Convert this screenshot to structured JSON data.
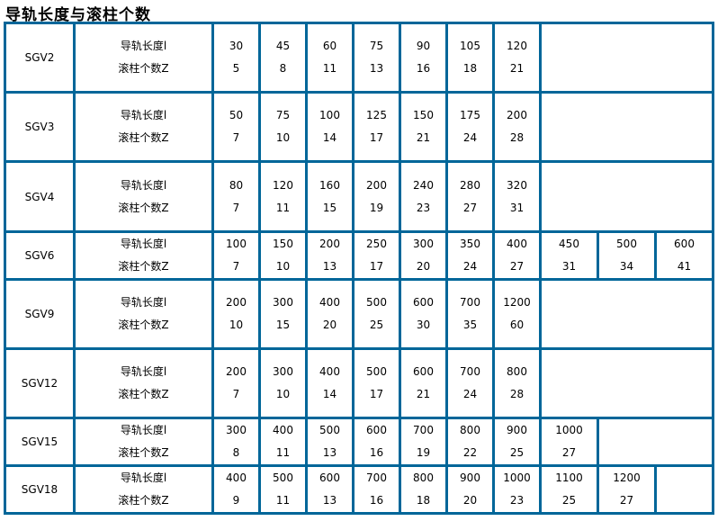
{
  "title": "导轨长度与滚柱个数",
  "row_labels": {
    "length": "导轨长度l",
    "count": "滚柱个数Z"
  },
  "colors": {
    "border": "#006699"
  },
  "rows": [
    {
      "model": "SGV2",
      "lengths": [
        "30",
        "45",
        "60",
        "75",
        "90",
        "105",
        "120"
      ],
      "counts": [
        "5",
        "8",
        "11",
        "13",
        "16",
        "18",
        "21"
      ]
    },
    {
      "model": "SGV3",
      "lengths": [
        "50",
        "75",
        "100",
        "125",
        "150",
        "175",
        "200"
      ],
      "counts": [
        "7",
        "10",
        "14",
        "17",
        "21",
        "24",
        "28"
      ]
    },
    {
      "model": "SGV4",
      "lengths": [
        "80",
        "120",
        "160",
        "200",
        "240",
        "280",
        "320"
      ],
      "counts": [
        "7",
        "11",
        "15",
        "19",
        "23",
        "27",
        "31"
      ]
    },
    {
      "model": "SGV6",
      "lengths": [
        "100",
        "150",
        "200",
        "250",
        "300",
        "350",
        "400",
        "450",
        "500",
        "600"
      ],
      "counts": [
        "7",
        "10",
        "13",
        "17",
        "20",
        "24",
        "27",
        "31",
        "34",
        "41"
      ]
    },
    {
      "model": "SGV9",
      "lengths": [
        "200",
        "300",
        "400",
        "500",
        "600",
        "700",
        "1200"
      ],
      "counts": [
        "10",
        "15",
        "20",
        "25",
        "30",
        "35",
        "60"
      ]
    },
    {
      "model": "SGV12",
      "lengths": [
        "200",
        "300",
        "400",
        "500",
        "600",
        "700",
        "800"
      ],
      "counts": [
        "7",
        "10",
        "14",
        "17",
        "21",
        "24",
        "28"
      ]
    },
    {
      "model": "SGV15",
      "lengths": [
        "300",
        "400",
        "500",
        "600",
        "700",
        "800",
        "900",
        "1000"
      ],
      "counts": [
        "8",
        "11",
        "13",
        "16",
        "19",
        "22",
        "25",
        "27"
      ]
    },
    {
      "model": "SGV18",
      "lengths": [
        "400",
        "500",
        "600",
        "700",
        "800",
        "900",
        "1000",
        "1100",
        "1200"
      ],
      "counts": [
        "9",
        "11",
        "13",
        "16",
        "18",
        "20",
        "23",
        "25",
        "27"
      ]
    }
  ]
}
